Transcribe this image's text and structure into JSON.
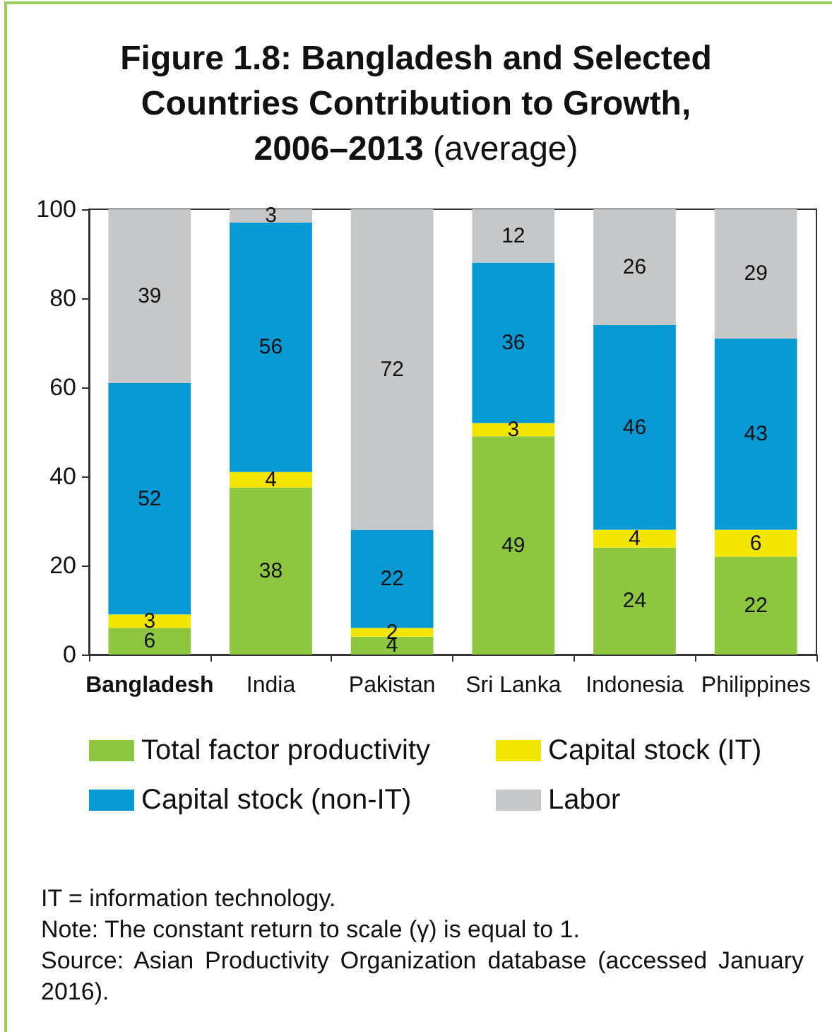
{
  "chart_data": {
    "type": "bar",
    "title": "Figure 1.8: Bangladesh and Selected Countries Contribution to Growth, 2006–2013 (average)",
    "categories": [
      "Bangladesh",
      "India",
      "Pakistan",
      "Sri Lanka",
      "Indonesia",
      "Philippines"
    ],
    "series": [
      {
        "name": "Total factor productivity",
        "color": "#8dc63f",
        "values": [
          6,
          37.5,
          4,
          49,
          24,
          22
        ],
        "value_labels": [
          "6",
          "38",
          "4",
          "49",
          "24",
          "22"
        ]
      },
      {
        "name": "Capital stock (IT)",
        "color": "#f2e500",
        "values": [
          3,
          3.5,
          2,
          3,
          4,
          6
        ],
        "value_labels": [
          "3",
          "4",
          "2",
          "3",
          "4",
          "6"
        ]
      },
      {
        "name": "Capital stock (non-IT)",
        "color": "#0799d4",
        "values": [
          52,
          56,
          22,
          36,
          46,
          43
        ],
        "value_labels": [
          "52",
          "56",
          "22",
          "36",
          "46",
          "43"
        ]
      },
      {
        "name": "Labor",
        "color": "#c6c7c9",
        "values": [
          39,
          3,
          72,
          12,
          26,
          29
        ],
        "value_labels": [
          "39",
          "3",
          "72",
          "12",
          "26",
          "29"
        ]
      }
    ],
    "stacked": true,
    "ylim": [
      0,
      100
    ],
    "yticks": [
      0,
      20,
      40,
      60,
      80,
      100
    ],
    "grid": false,
    "legend": "bottom",
    "annotations": [
      "IT = information technology.",
      "Note: The constant return to scale (γ) is equal to 1.",
      "Source: Asian Productivity Organization database (accessed January 2016)."
    ]
  }
}
